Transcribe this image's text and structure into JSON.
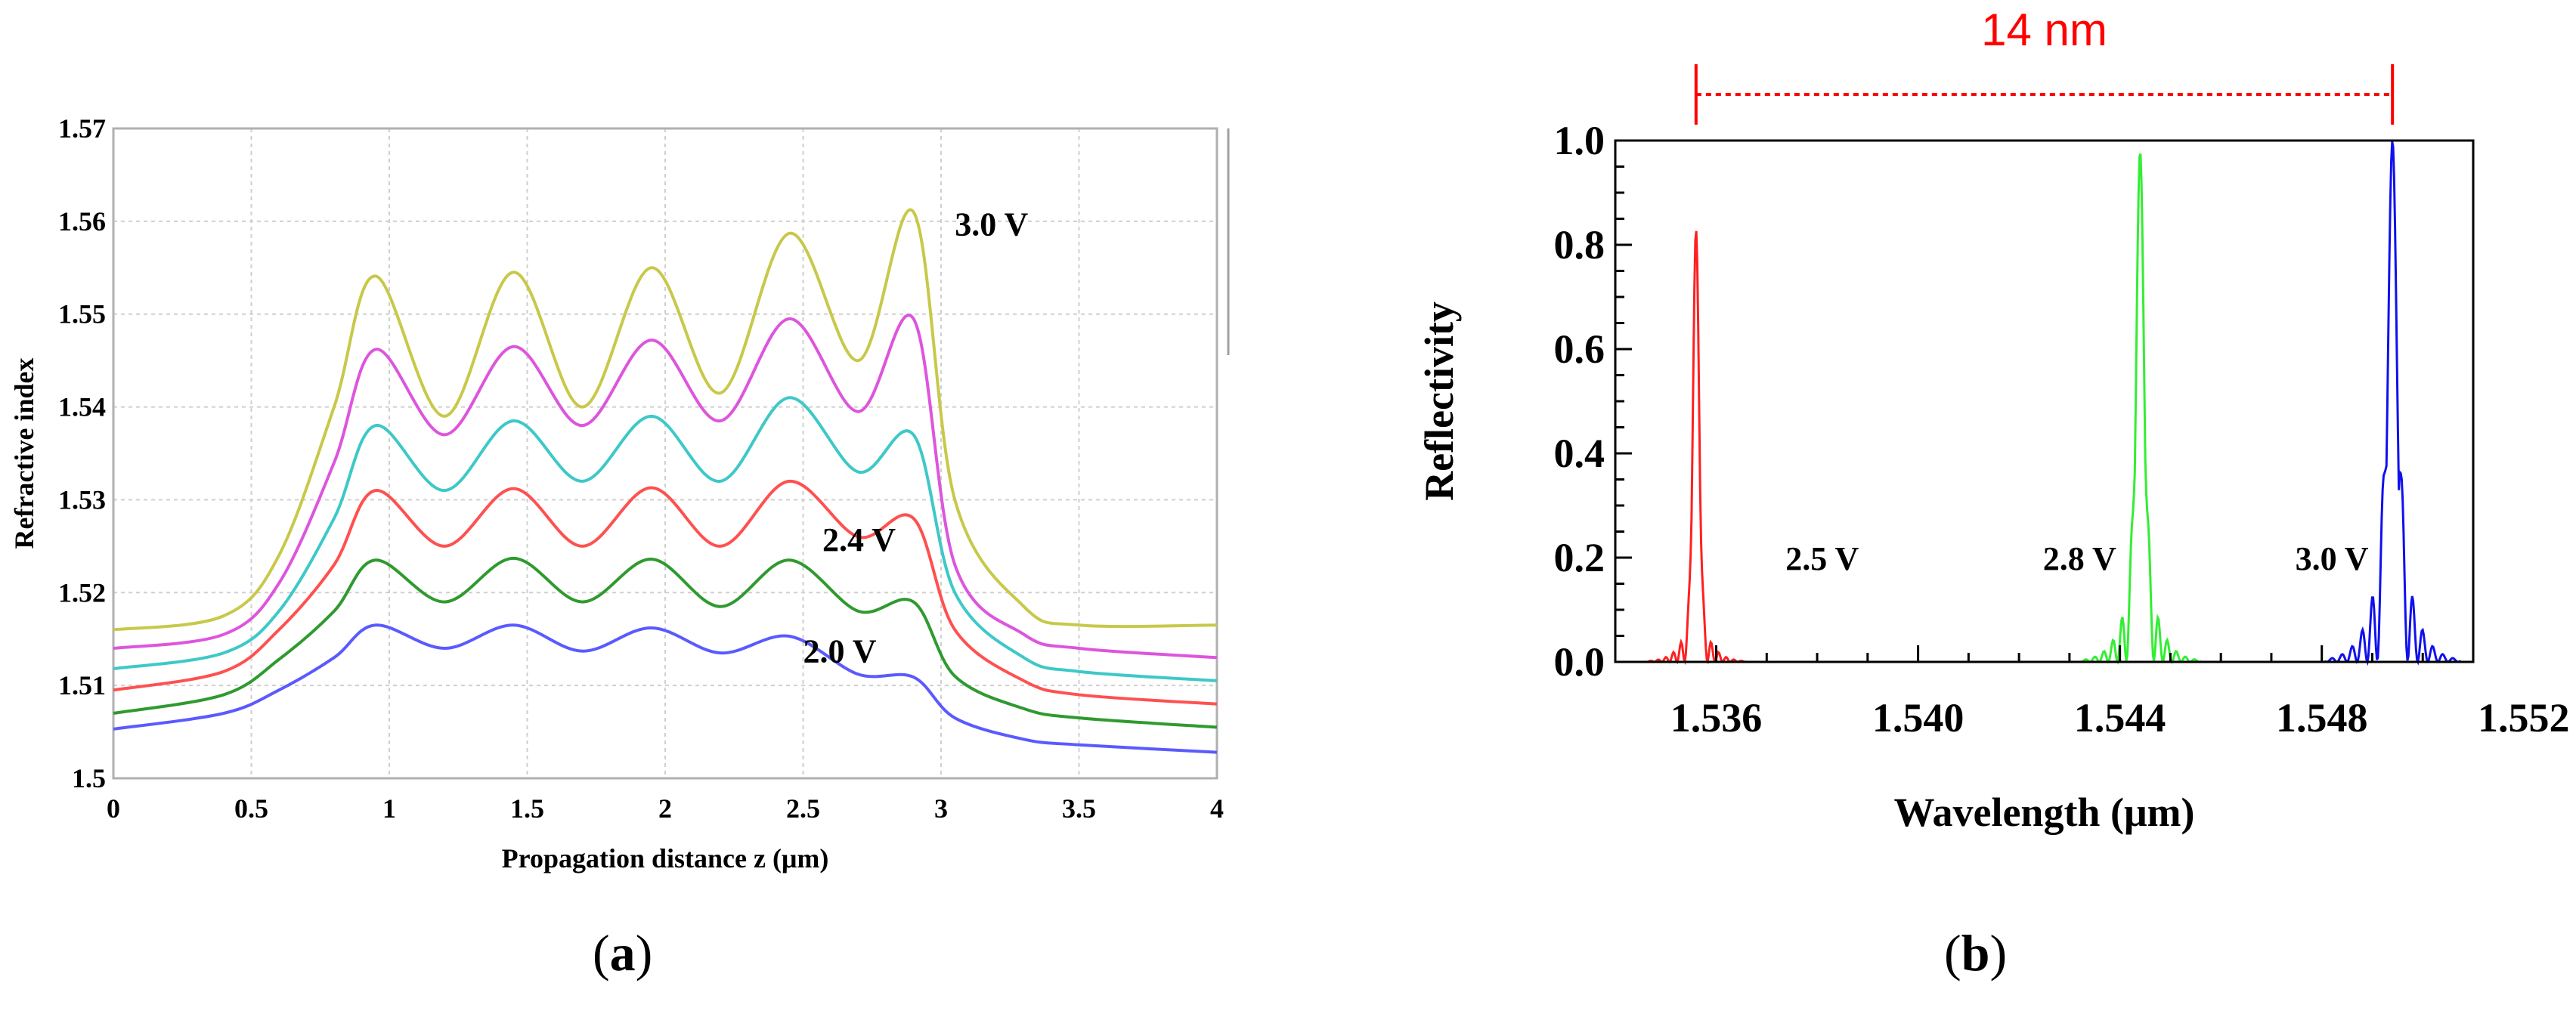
{
  "chart_data": [
    {
      "type": "line",
      "panel": "(a)",
      "xlabel": "Propagation distance z (μm)",
      "ylabel": "Refractive index",
      "xlim": [
        0,
        4
      ],
      "ylim": [
        1.5,
        1.57
      ],
      "xticks": [
        0,
        0.5,
        1,
        1.5,
        2,
        2.5,
        3,
        3.5,
        4
      ],
      "xtick_labels": [
        "0",
        "0.5",
        "1",
        "1.5",
        "2",
        "2.5",
        "3",
        "3.5",
        "4"
      ],
      "yticks": [
        1.5,
        1.51,
        1.52,
        1.53,
        1.54,
        1.55,
        1.56,
        1.57
      ],
      "ytick_labels": [
        "1.5",
        "1.51",
        "1.52",
        "1.53",
        "1.54",
        "1.55",
        "1.56",
        "1.57"
      ],
      "grid": true,
      "x": [
        0,
        0.4,
        0.6,
        0.8,
        0.95,
        1.2,
        1.45,
        1.7,
        1.95,
        2.2,
        2.45,
        2.7,
        2.9,
        3.05,
        3.3,
        3.5,
        4.0
      ],
      "series": [
        {
          "name": "2.0 V",
          "color": "#5a5aff",
          "values": [
            1.5053,
            1.507,
            1.5095,
            1.513,
            1.5165,
            1.514,
            1.5165,
            1.5137,
            1.5162,
            1.5135,
            1.5153,
            1.5112,
            1.5109,
            1.5065,
            1.5042,
            1.5036,
            1.5028
          ]
        },
        {
          "name": "",
          "color": "#2f9a2f",
          "values": [
            1.507,
            1.509,
            1.5128,
            1.518,
            1.5235,
            1.519,
            1.5237,
            1.519,
            1.5236,
            1.5185,
            1.5235,
            1.518,
            1.519,
            1.511,
            1.5075,
            1.5065,
            1.5055
          ]
        },
        {
          "name": "2.4 V",
          "color": "#ff5050",
          "values": [
            1.5095,
            1.5115,
            1.516,
            1.523,
            1.531,
            1.525,
            1.5312,
            1.525,
            1.5313,
            1.525,
            1.532,
            1.526,
            1.528,
            1.516,
            1.5105,
            1.509,
            1.508
          ]
        },
        {
          "name": "",
          "color": "#3ec8c8",
          "values": [
            1.5118,
            1.5135,
            1.518,
            1.528,
            1.538,
            1.531,
            1.5385,
            1.532,
            1.539,
            1.532,
            1.541,
            1.533,
            1.537,
            1.52,
            1.513,
            1.5115,
            1.5105
          ]
        },
        {
          "name": "",
          "color": "#dd55dd",
          "values": [
            1.514,
            1.5155,
            1.521,
            1.534,
            1.5462,
            1.537,
            1.5465,
            1.538,
            1.5472,
            1.5385,
            1.5495,
            1.5395,
            1.5495,
            1.523,
            1.5155,
            1.514,
            1.513
          ]
        },
        {
          "name": "3.0 V",
          "color": "#c8c84a",
          "values": [
            1.516,
            1.5175,
            1.524,
            1.54,
            1.5541,
            1.539,
            1.5545,
            1.54,
            1.555,
            1.5415,
            1.5587,
            1.545,
            1.561,
            1.53,
            1.5185,
            1.5165,
            1.5165
          ]
        }
      ],
      "annotations": [
        {
          "text": "3.0 V",
          "x": 3.05,
          "y": 1.5585
        },
        {
          "text": "2.4 V",
          "x": 2.57,
          "y": 1.5245
        },
        {
          "text": "2.0 V",
          "x": 2.5,
          "y": 1.5125
        }
      ]
    },
    {
      "type": "line",
      "panel": "(b)",
      "xlabel": "Wavelength (μm)",
      "ylabel": "Reflectivity",
      "xlim": [
        1.534,
        1.551
      ],
      "ylim": [
        0.0,
        1.0
      ],
      "xticks": [
        1.536,
        1.54,
        1.544,
        1.548,
        1.552
      ],
      "xtick_labels": [
        "1.536",
        "1.540",
        "1.544",
        "1.548",
        "1.552"
      ],
      "yticks": [
        0.0,
        0.2,
        0.4,
        0.6,
        0.8,
        1.0
      ],
      "ytick_labels": [
        "0.0",
        "0.2",
        "0.4",
        "0.6",
        "0.8",
        "1.0"
      ],
      "grid": false,
      "series": [
        {
          "name": "2.5 V",
          "color": "#ff2020",
          "center": 1.5356,
          "peak": 0.83,
          "width": 0.06,
          "side_lobe": 0.1,
          "side_spacing": 0.15
        },
        {
          "name": "2.8 V",
          "color": "#33ee33",
          "center": 1.5444,
          "peak": 0.98,
          "width": 0.075,
          "side_lobe": 0.22,
          "side_spacing": 0.18
        },
        {
          "name": "3.0 V",
          "color": "#1010ee",
          "center": 1.5494,
          "peak": 1.0,
          "width": 0.085,
          "side_lobe": 0.32,
          "side_spacing": 0.2
        }
      ],
      "annotations": [
        {
          "text": "2.5 V",
          "x": 1.5381,
          "y": 0.2
        },
        {
          "text": "2.8 V",
          "x": 1.5432,
          "y": 0.2
        },
        {
          "text": "3.0 V",
          "x": 1.5482,
          "y": 0.2
        }
      ],
      "span_annotation": {
        "text": "14 nm",
        "from": 1.5356,
        "to": 1.5494,
        "color": "#ff0000"
      }
    }
  ],
  "captions": {
    "a": "a",
    "b": "b"
  }
}
